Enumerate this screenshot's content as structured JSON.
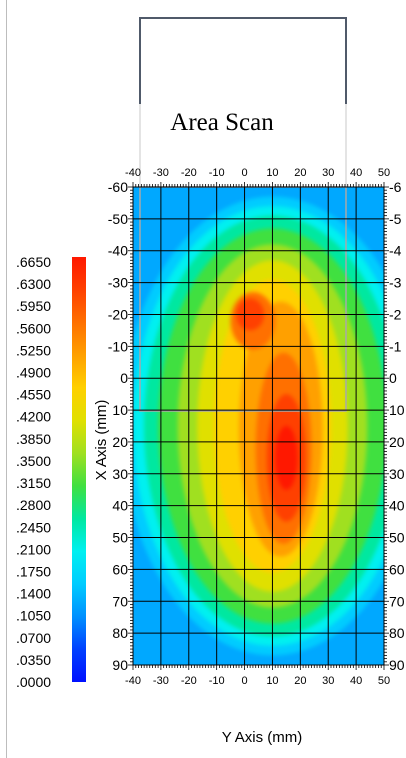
{
  "chart_data": {
    "type": "heatmap",
    "title": "Area Scan",
    "xlabel": "Y Axis (mm)",
    "ylabel": "X Axis (mm)",
    "x_ticks": [
      "-40",
      "-30",
      "-20",
      "-10",
      "0",
      "10",
      "20",
      "30",
      "40",
      "50"
    ],
    "y_ticks": [
      "-60",
      "-50",
      "-40",
      "-30",
      "-20",
      "-10",
      "0",
      "10",
      "20",
      "30",
      "40",
      "50",
      "60",
      "70",
      "80",
      "90"
    ],
    "right_ticks": [
      "-6",
      "-5",
      "-4",
      "-3",
      "-2",
      "-1",
      "0",
      "10",
      "20",
      "30",
      "40",
      "50",
      "60",
      "70",
      "80",
      "90"
    ],
    "xlim": [
      -40,
      50
    ],
    "ylim": [
      -60,
      90
    ],
    "grid": true,
    "colorbar": {
      "labels": [
        ".6650",
        ".6300",
        ".5950",
        ".5600",
        ".5250",
        ".4900",
        ".4550",
        ".4200",
        ".3850",
        ".3500",
        ".3150",
        ".2800",
        ".2450",
        ".2100",
        ".1750",
        ".1400",
        ".1050",
        ".0700",
        ".0350",
        ".0000"
      ],
      "min": 0.0,
      "max": 0.665,
      "colors": [
        "#0010ff",
        "#0040ff",
        "#0090ff",
        "#00ccff",
        "#00f0f0",
        "#00e8a0",
        "#40e040",
        "#a0e020",
        "#e0e000",
        "#ffd000",
        "#ffa000",
        "#ff7000",
        "#ff4000",
        "#ff1800"
      ]
    },
    "peaks": [
      {
        "x": 15,
        "y": 25,
        "value": 0.66
      },
      {
        "x": 2,
        "y": -20,
        "value": 0.58
      }
    ]
  }
}
